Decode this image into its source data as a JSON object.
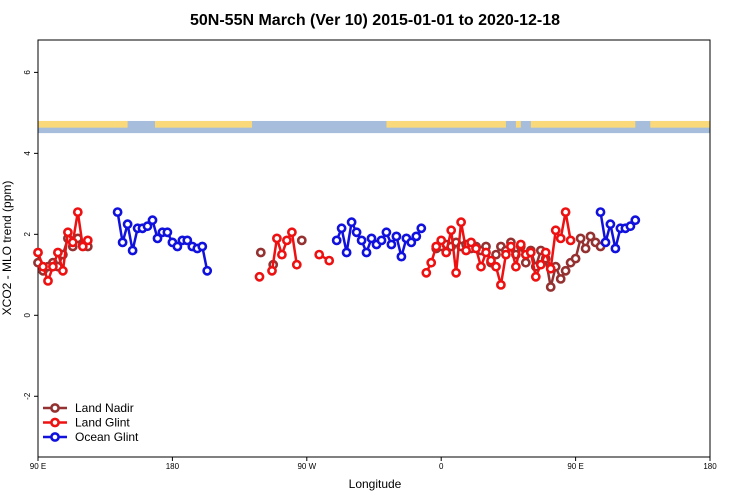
{
  "chart_data": {
    "type": "line",
    "title": "50N-55N March (Ver 10)   2015-01-01 to 2020-12-18",
    "xlabel": "Longitude",
    "ylabel": "XCO2 - MLO trend (ppm)",
    "xlim": [
      -90,
      180
    ],
    "ylim": [
      -3.5,
      6.8
    ],
    "x_ticks": [
      {
        "value": -90,
        "label": "90 E"
      },
      {
        "value": -36,
        "label": "180"
      },
      {
        "value": 18,
        "label": "90 W"
      },
      {
        "value": 72,
        "label": "0"
      },
      {
        "value": 126,
        "label": "90 E"
      },
      {
        "value": 180,
        "label": "180"
      }
    ],
    "y_ticks": [
      -2,
      0,
      2,
      4,
      6
    ],
    "legend_position": "bottom-left",
    "land_sea_band": {
      "y_range": [
        4.5,
        4.8
      ],
      "ocean_color": "#a6bddb",
      "land_color": "#f9d97a"
    },
    "series": [
      {
        "name": "Land Nadir",
        "color": "#943232",
        "points": [
          [
            -90,
            1.3
          ],
          [
            -88,
            1.1
          ],
          [
            -86,
            1.2
          ],
          [
            -84,
            1.3
          ],
          [
            -82,
            1.2
          ],
          [
            -80,
            1.5
          ],
          [
            -78,
            1.9
          ],
          [
            -76,
            1.7
          ],
          [
            -74,
            1.9
          ],
          [
            -72,
            1.75
          ],
          [
            -70,
            1.7
          ],
          [
            -0.5,
            1.55
          ],
          [
            4.5,
            1.25
          ],
          [
            16,
            1.85
          ],
          [
            70,
            1.65
          ],
          [
            72,
            1.7
          ],
          [
            74,
            1.75
          ],
          [
            76,
            1.7
          ],
          [
            78,
            1.8
          ],
          [
            80,
            1.7
          ],
          [
            82,
            1.75
          ],
          [
            84,
            1.65
          ],
          [
            86,
            1.7
          ],
          [
            88,
            1.6
          ],
          [
            90,
            1.7
          ],
          [
            92,
            1.3
          ],
          [
            94,
            1.5
          ],
          [
            96,
            1.7
          ],
          [
            98,
            1.6
          ],
          [
            100,
            1.8
          ],
          [
            102,
            1.5
          ],
          [
            104,
            1.7
          ],
          [
            106,
            1.3
          ],
          [
            108,
            1.6
          ],
          [
            110,
            1.2
          ],
          [
            112,
            1.6
          ],
          [
            114,
            1.4
          ],
          [
            116,
            0.7
          ],
          [
            118,
            1.2
          ],
          [
            120,
            0.9
          ],
          [
            122,
            1.1
          ],
          [
            124,
            1.3
          ],
          [
            126,
            1.4
          ],
          [
            128,
            1.9
          ],
          [
            130,
            1.65
          ],
          [
            132,
            1.95
          ],
          [
            134,
            1.8
          ],
          [
            136,
            1.7
          ]
        ]
      },
      {
        "name": "Land Glint",
        "color": "#ee1111",
        "points": [
          [
            -90,
            1.55
          ],
          [
            -88,
            1.2
          ],
          [
            -86,
            0.85
          ],
          [
            -84,
            1.2
          ],
          [
            -82,
            1.55
          ],
          [
            -80,
            1.1
          ],
          [
            -78,
            2.05
          ],
          [
            -76,
            1.8
          ],
          [
            -74,
            2.55
          ],
          [
            -72,
            1.7
          ],
          [
            -70,
            1.85
          ],
          [
            -1,
            0.95
          ],
          [
            4,
            1.1
          ],
          [
            6,
            1.9
          ],
          [
            8,
            1.5
          ],
          [
            10,
            1.85
          ],
          [
            12,
            2.05
          ],
          [
            14,
            1.25
          ],
          [
            23,
            1.5
          ],
          [
            27,
            1.35
          ],
          [
            66,
            1.05
          ],
          [
            68,
            1.3
          ],
          [
            70,
            1.7
          ],
          [
            72,
            1.85
          ],
          [
            74,
            1.55
          ],
          [
            76,
            2.1
          ],
          [
            78,
            1.05
          ],
          [
            80,
            2.3
          ],
          [
            82,
            1.6
          ],
          [
            84,
            1.8
          ],
          [
            86,
            1.65
          ],
          [
            88,
            1.2
          ],
          [
            90,
            1.55
          ],
          [
            92,
            1.35
          ],
          [
            94,
            1.2
          ],
          [
            96,
            0.75
          ],
          [
            98,
            1.5
          ],
          [
            100,
            1.7
          ],
          [
            102,
            1.2
          ],
          [
            104,
            1.75
          ],
          [
            106,
            1.5
          ],
          [
            108,
            1.55
          ],
          [
            110,
            0.95
          ],
          [
            112,
            1.25
          ],
          [
            114,
            1.55
          ],
          [
            116,
            1.15
          ],
          [
            118,
            2.1
          ],
          [
            120,
            1.9
          ],
          [
            122,
            2.55
          ],
          [
            124,
            1.85
          ]
        ]
      },
      {
        "name": "Ocean Glint",
        "color": "#1111dd",
        "points": [
          [
            -58,
            2.55
          ],
          [
            -56,
            1.8
          ],
          [
            -54,
            2.25
          ],
          [
            -52,
            1.6
          ],
          [
            -50,
            2.15
          ],
          [
            -48,
            2.15
          ],
          [
            -46,
            2.2
          ],
          [
            -44,
            2.35
          ],
          [
            -42,
            1.9
          ],
          [
            -40,
            2.05
          ],
          [
            -38,
            2.05
          ],
          [
            -36,
            1.8
          ],
          [
            -34,
            1.7
          ],
          [
            -32,
            1.85
          ],
          [
            -30,
            1.85
          ],
          [
            -28,
            1.7
          ],
          [
            -26,
            1.65
          ],
          [
            -24,
            1.7
          ],
          [
            -22,
            1.1
          ],
          [
            30,
            1.85
          ],
          [
            32,
            2.15
          ],
          [
            34,
            1.55
          ],
          [
            36,
            2.3
          ],
          [
            38,
            2.05
          ],
          [
            40,
            1.85
          ],
          [
            42,
            1.55
          ],
          [
            44,
            1.9
          ],
          [
            46,
            1.75
          ],
          [
            48,
            1.85
          ],
          [
            50,
            2.05
          ],
          [
            52,
            1.75
          ],
          [
            54,
            1.95
          ],
          [
            56,
            1.45
          ],
          [
            58,
            1.9
          ],
          [
            60,
            1.8
          ],
          [
            62,
            1.95
          ],
          [
            64,
            2.15
          ],
          [
            136,
            2.55
          ],
          [
            138,
            1.8
          ],
          [
            140,
            2.25
          ],
          [
            142,
            1.65
          ],
          [
            144,
            2.15
          ],
          [
            146,
            2.15
          ],
          [
            148,
            2.2
          ],
          [
            150,
            2.35
          ]
        ]
      }
    ]
  }
}
